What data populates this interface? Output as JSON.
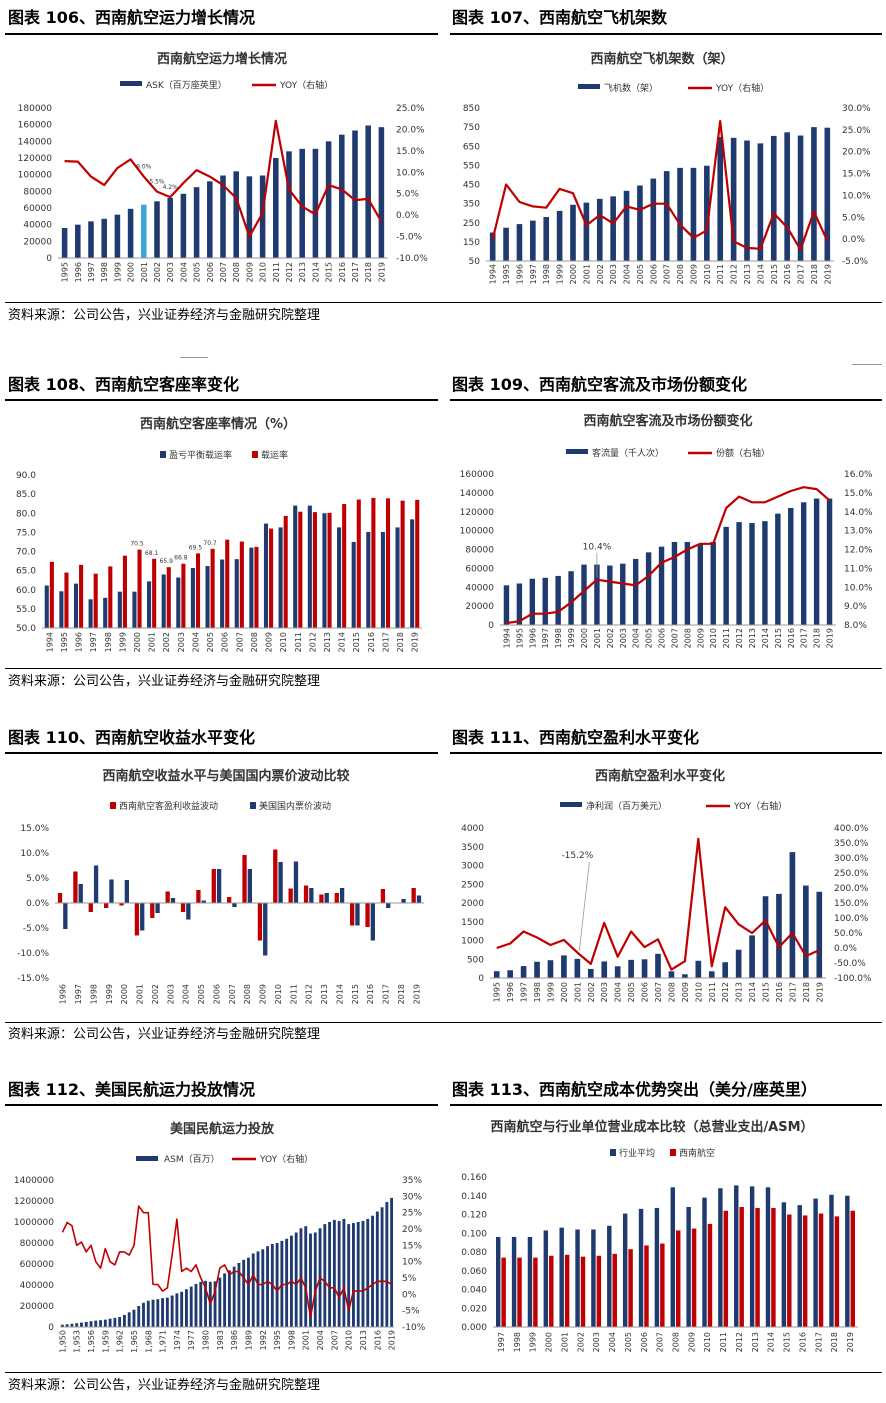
{
  "panels": [
    {
      "id": "c106",
      "heading": "图表 106、西南航空运力增长情况"
    },
    {
      "id": "c107",
      "heading": "图表 107、西南航空飞机架数"
    },
    {
      "id": "c108",
      "heading": "图表 108、西南航空客座率变化"
    },
    {
      "id": "c109",
      "heading": "图表 109、西南航空客流及市场份额变化"
    },
    {
      "id": "c110",
      "heading": "图表 110、西南航空收益水平变化"
    },
    {
      "id": "c111",
      "heading": "图表 111、西南航空盈利水平变化"
    },
    {
      "id": "c112",
      "heading": "图表 112、美国民航运力投放情况"
    },
    {
      "id": "c113",
      "heading": "图表 113、西南航空成本优势突出（美分/座英里）"
    }
  ],
  "source_text": "资料来源：公司公告，兴业证券经济与金融研究院整理",
  "colors": {
    "navy": "#1f3a6f",
    "red": "#c00000",
    "highlight": "#3aa6d8"
  },
  "chart_data": [
    {
      "id": "c106",
      "type": "bar+line",
      "title": "西南航空运力增长情况",
      "categories": [
        "1995",
        "1996",
        "1997",
        "1998",
        "1999",
        "2000",
        "2001",
        "2002",
        "2003",
        "2004",
        "2005",
        "2006",
        "2007",
        "2008",
        "2009",
        "2010",
        "2011",
        "2012",
        "2013",
        "2014",
        "2015",
        "2016",
        "2017",
        "2018",
        "2019"
      ],
      "series": [
        {
          "name": "ASK（百万座英里）",
          "kind": "bar",
          "axis": "left",
          "values": [
            36000,
            40000,
            44000,
            47000,
            52000,
            59000,
            64000,
            68000,
            72000,
            77000,
            85000,
            92000,
            99000,
            104000,
            98000,
            99000,
            120000,
            128000,
            131000,
            131000,
            140000,
            148000,
            153000,
            159000,
            157000
          ],
          "highlight_index": 6
        },
        {
          "name": "YOY（右轴）",
          "kind": "line",
          "axis": "right",
          "values": [
            12.6,
            12.5,
            9.0,
            7.0,
            11.0,
            13.0,
            9.0,
            5.5,
            4.2,
            7.5,
            10.5,
            9.0,
            7.0,
            4.0,
            -5.0,
            0.5,
            22.0,
            6.0,
            2.0,
            0.2,
            7.0,
            6.0,
            3.5,
            3.8,
            -1.5
          ]
        }
      ],
      "annotations": [
        {
          "index": 6,
          "text": "9.0%"
        },
        {
          "index": 7,
          "text": "5.5%"
        },
        {
          "index": 8,
          "text": "4.2%"
        }
      ],
      "ylim": [
        0,
        180000
      ],
      "yticks": [
        "0",
        "20000",
        "40000",
        "60000",
        "80000",
        "100000",
        "120000",
        "140000",
        "160000",
        "180000"
      ],
      "y2lim": [
        -10,
        25
      ],
      "y2ticks": [
        "-10.0%",
        "-5.0%",
        "0.0%",
        "5.0%",
        "10.0%",
        "15.0%",
        "20.0%",
        "25.0%"
      ],
      "legend_position": "top"
    },
    {
      "id": "c107",
      "type": "bar+line",
      "title": "西南航空飞机架数（架）",
      "categories": [
        "1994",
        "1995",
        "1996",
        "1997",
        "1998",
        "1999",
        "2000",
        "2001",
        "2002",
        "2003",
        "2004",
        "2005",
        "2006",
        "2007",
        "2008",
        "2009",
        "2010",
        "2011",
        "2012",
        "2013",
        "2014",
        "2015",
        "2016",
        "2017",
        "2018",
        "2019"
      ],
      "series": [
        {
          "name": "飞机数（架）",
          "kind": "bar",
          "axis": "left",
          "values": [
            199,
            224,
            243,
            261,
            280,
            312,
            344,
            355,
            375,
            388,
            417,
            445,
            481,
            520,
            537,
            537,
            548,
            698,
            694,
            680,
            665,
            704,
            723,
            706,
            750,
            747
          ]
        },
        {
          "name": "YOY（右轴）",
          "kind": "line",
          "axis": "right",
          "values": [
            0,
            12.5,
            8.5,
            7.5,
            7.2,
            11.5,
            10.5,
            3.2,
            5.5,
            3.6,
            7.5,
            6.7,
            8.1,
            8.1,
            3.3,
            0.3,
            2.0,
            27.0,
            -0.5,
            -2.0,
            -2.2,
            5.9,
            2.7,
            -2.4,
            6.3,
            -0.4
          ]
        }
      ],
      "ylim": [
        50,
        850
      ],
      "yticks": [
        "50",
        "150",
        "250",
        "350",
        "450",
        "550",
        "650",
        "750",
        "850"
      ],
      "y2lim": [
        -5,
        30
      ],
      "y2ticks": [
        "-5.0%",
        "0.0%",
        "5.0%",
        "10.0%",
        "15.0%",
        "20.0%",
        "25.0%",
        "30.0%"
      ],
      "legend_position": "top"
    },
    {
      "id": "c108",
      "type": "bar",
      "title": "西南航空客座率情况（%）",
      "categories": [
        "1994",
        "1995",
        "1996",
        "1997",
        "1998",
        "1999",
        "2000",
        "2001",
        "2002",
        "2003",
        "2004",
        "2005",
        "2006",
        "2007",
        "2008",
        "2009",
        "2010",
        "2011",
        "2012",
        "2013",
        "2014",
        "2015",
        "2016",
        "2017",
        "2018",
        "2019"
      ],
      "series": [
        {
          "name": "盈亏平衡载运率",
          "values": [
            61.1,
            59.6,
            61.6,
            57.5,
            57.9,
            59.5,
            59.5,
            62.2,
            64.0,
            63.2,
            65.7,
            66.2,
            67.9,
            68.0,
            71.0,
            77.3,
            76.3,
            82.0,
            82.0,
            80.0,
            76.3,
            72.5,
            75.1,
            75.1,
            76.3,
            78.4
          ]
        },
        {
          "name": "载运率",
          "values": [
            67.3,
            64.5,
            66.5,
            64.2,
            66.1,
            68.9,
            70.5,
            68.1,
            65.9,
            66.8,
            69.5,
            70.7,
            73.1,
            72.6,
            71.2,
            76.0,
            79.3,
            80.4,
            80.3,
            80.1,
            82.4,
            83.6,
            84.0,
            83.9,
            83.3,
            83.5
          ]
        }
      ],
      "annotations": [
        {
          "index": 6,
          "text": "70.5"
        },
        {
          "index": 7,
          "text": "68.1"
        },
        {
          "index": 8,
          "text": "65.9"
        },
        {
          "index": 9,
          "text": "66.8"
        },
        {
          "index": 10,
          "text": "69.5"
        },
        {
          "index": 11,
          "text": "70.7"
        }
      ],
      "ylim": [
        50,
        90
      ],
      "yticks": [
        "50.0",
        "55.0",
        "60.0",
        "65.0",
        "70.0",
        "75.0",
        "80.0",
        "85.0",
        "90.0"
      ],
      "legend_position": "top"
    },
    {
      "id": "c109",
      "type": "bar+line",
      "title": "西南航空客流及市场份额变化",
      "categories": [
        "1994",
        "1995",
        "1996",
        "1997",
        "1998",
        "1999",
        "2000",
        "2001",
        "2002",
        "2003",
        "2004",
        "2005",
        "2006",
        "2007",
        "2008",
        "2009",
        "2010",
        "2011",
        "2012",
        "2013",
        "2014",
        "2015",
        "2016",
        "2017",
        "2018",
        "2019"
      ],
      "series": [
        {
          "name": "客流量（千人次）",
          "kind": "bar",
          "axis": "left",
          "values": [
            42000,
            44000,
            49000,
            50000,
            52000,
            57000,
            64000,
            64000,
            63000,
            65000,
            70000,
            77000,
            83000,
            88000,
            88000,
            86000,
            88000,
            104000,
            109000,
            108000,
            110000,
            118000,
            124000,
            130000,
            134000,
            134000
          ]
        },
        {
          "name": "份额（右轴）",
          "kind": "line",
          "axis": "right",
          "values": [
            8.1,
            8.2,
            8.6,
            8.6,
            8.7,
            9.2,
            9.8,
            10.4,
            10.3,
            10.2,
            10.1,
            10.6,
            11.3,
            11.6,
            12.0,
            12.3,
            12.3,
            14.2,
            14.8,
            14.5,
            14.5,
            14.8,
            15.1,
            15.3,
            15.2,
            14.6
          ]
        }
      ],
      "annotations": [
        {
          "index": 7,
          "text": "10.4%"
        }
      ],
      "ylim": [
        0,
        160000
      ],
      "yticks": [
        "0",
        "20000",
        "40000",
        "60000",
        "80000",
        "100000",
        "120000",
        "140000",
        "160000"
      ],
      "y2lim": [
        8,
        16
      ],
      "y2ticks": [
        "8.0%",
        "9.0%",
        "10.0%",
        "11.0%",
        "12.0%",
        "13.0%",
        "14.0%",
        "15.0%",
        "16.0%"
      ],
      "legend_position": "top"
    },
    {
      "id": "c110",
      "type": "bar",
      "title": "西南航空收益水平与美国国内票价波动比较",
      "categories": [
        "1996",
        "1997",
        "1998",
        "1999",
        "2000",
        "2001",
        "2002",
        "2003",
        "2004",
        "2005",
        "2006",
        "2007",
        "2008",
        "2009",
        "2010",
        "2011",
        "2012",
        "2013",
        "2014",
        "2015",
        "2016",
        "2017",
        "2018",
        "2019"
      ],
      "series": [
        {
          "name": "西南航空客盈利收益波动",
          "values": [
            2.0,
            6.3,
            -1.8,
            -1.0,
            -0.5,
            -6.5,
            -3.0,
            2.3,
            -1.8,
            2.6,
            6.8,
            1.2,
            9.6,
            -7.5,
            10.7,
            2.9,
            3.5,
            1.7,
            2.0,
            -4.5,
            -4.8,
            2.8,
            0.0,
            3.0
          ]
        },
        {
          "name": "美国国内票价波动",
          "values": [
            -5.2,
            3.8,
            7.5,
            4.7,
            4.6,
            -5.5,
            -2.0,
            1.0,
            -3.3,
            0.5,
            6.8,
            -0.8,
            6.8,
            -10.5,
            8.2,
            8.3,
            3.0,
            2.0,
            3.0,
            -4.5,
            -7.5,
            -1.0,
            0.8,
            1.5
          ]
        }
      ],
      "ylim": [
        -15,
        15
      ],
      "yticks": [
        "-15.0%",
        "-10.0%",
        "-5.0%",
        "0.0%",
        "5.0%",
        "10.0%",
        "15.0%"
      ],
      "legend_position": "top"
    },
    {
      "id": "c111",
      "type": "bar+line",
      "title": "西南航空盈利水平变化",
      "categories": [
        "1995",
        "1996",
        "1997",
        "1998",
        "1999",
        "2000",
        "2001",
        "2002",
        "2003",
        "2004",
        "2005",
        "2006",
        "2007",
        "2008",
        "2009",
        "2010",
        "2011",
        "2012",
        "2013",
        "2014",
        "2015",
        "2016",
        "2017",
        "2018",
        "2019"
      ],
      "series": [
        {
          "name": "净利润（百万美元）",
          "kind": "bar",
          "axis": "right_is_line",
          "values": [
            182,
            207,
            318,
            433,
            474,
            603,
            511,
            241,
            442,
            313,
            484,
            499,
            645,
            178,
            99,
            459,
            178,
            421,
            754,
            1136,
            2181,
            2244,
            3357,
            2465,
            2300
          ]
        },
        {
          "name": "YOY（右轴）",
          "kind": "line",
          "axis": "right",
          "values": [
            0,
            15,
            55,
            35,
            10,
            27,
            -15.2,
            -53,
            84,
            -29,
            55,
            3,
            29,
            -72,
            -44,
            364,
            -61,
            136,
            79,
            50,
            92,
            3,
            50,
            -27,
            -7
          ]
        }
      ],
      "annotations": [
        {
          "index": 6,
          "text": "-15.2%"
        }
      ],
      "ylim": [
        0,
        4000
      ],
      "yticks": [
        "0",
        "500",
        "1000",
        "1500",
        "2000",
        "2500",
        "3000",
        "3500",
        "4000"
      ],
      "y2lim": [
        -100,
        400
      ],
      "y2ticks": [
        "-100.0%",
        "-50.0%",
        "0.0%",
        "50.0%",
        "100.0%",
        "150.0%",
        "200.0%",
        "250.0%",
        "300.0%",
        "350.0%",
        "400.0%"
      ],
      "legend_position": "top"
    },
    {
      "id": "c112",
      "type": "bar+line",
      "title": "美国民航运力投放",
      "tick_labels": [
        "1,950",
        "1,953",
        "1,956",
        "1,959",
        "1,962",
        "1,965",
        "1,968",
        "1,971",
        "1974",
        "1977",
        "1980",
        "1983",
        "1986",
        "1989",
        "1992",
        "1995",
        "1998",
        "2001",
        "2004",
        "2007",
        "2010",
        "2013",
        "2016",
        "2019"
      ],
      "years_start": 1950,
      "years_end": 2019,
      "series": [
        {
          "name": "ASM（百万）",
          "kind": "bar",
          "axis": "left",
          "values": [
            22000,
            26000,
            31000,
            36000,
            42000,
            48000,
            55000,
            61000,
            65000,
            70000,
            79000,
            87000,
            95000,
            115000,
            140000,
            165000,
            200000,
            230000,
            250000,
            260000,
            265000,
            275000,
            280000,
            300000,
            320000,
            335000,
            360000,
            385000,
            410000,
            430000,
            440000,
            430000,
            435000,
            470000,
            510000,
            540000,
            575000,
            610000,
            640000,
            660000,
            700000,
            720000,
            740000,
            770000,
            790000,
            800000,
            820000,
            840000,
            870000,
            900000,
            940000,
            960000,
            890000,
            900000,
            940000,
            980000,
            1000000,
            1020000,
            1010000,
            1030000,
            980000,
            990000,
            1000000,
            1010000,
            1030000,
            1060000,
            1100000,
            1140000,
            1190000,
            1230000
          ]
        },
        {
          "name": "YOY（右轴）",
          "kind": "line",
          "axis": "right",
          "values": [
            19,
            22,
            21,
            15,
            16,
            13,
            15,
            10,
            8,
            14,
            10,
            9,
            13,
            13,
            12,
            15,
            27,
            25,
            25,
            3,
            3,
            1,
            2,
            12,
            23,
            7,
            8,
            7,
            9,
            5,
            2,
            -3,
            1,
            8,
            9,
            6,
            7,
            7,
            5,
            3,
            6,
            3,
            3,
            4,
            3,
            1,
            3,
            3,
            4,
            3,
            5,
            2,
            -7,
            1,
            5,
            4,
            2,
            2,
            -1,
            2,
            -5,
            1,
            1,
            1,
            2,
            3,
            4,
            4,
            4,
            3
          ]
        }
      ],
      "ylim": [
        0,
        1400000
      ],
      "yticks": [
        "0",
        "200000",
        "400000",
        "600000",
        "800000",
        "1000000",
        "1200000",
        "1400000"
      ],
      "y2lim": [
        -10,
        35
      ],
      "y2ticks": [
        "-10%",
        "-5%",
        "0%",
        "5%",
        "10%",
        "15%",
        "20%",
        "25%",
        "30%",
        "35%"
      ],
      "legend_position": "top"
    },
    {
      "id": "c113",
      "type": "bar",
      "title": "西南航空与行业单位营业成本比较（总营业支出/ASM）",
      "categories": [
        "1997",
        "1998",
        "1999",
        "2000",
        "2001",
        "2002",
        "2003",
        "2004",
        "2005",
        "2006",
        "2007",
        "2008",
        "2009",
        "2010",
        "2011",
        "2012",
        "2013",
        "2014",
        "2015",
        "2016",
        "2017",
        "2018",
        "2019"
      ],
      "series": [
        {
          "name": "行业平均",
          "values": [
            0.096,
            0.096,
            0.096,
            0.103,
            0.106,
            0.104,
            0.104,
            0.108,
            0.121,
            0.126,
            0.127,
            0.149,
            0.128,
            0.138,
            0.148,
            0.151,
            0.15,
            0.149,
            0.133,
            0.13,
            0.137,
            0.141,
            0.14
          ]
        },
        {
          "name": "西南航空",
          "values": [
            0.074,
            0.074,
            0.074,
            0.076,
            0.077,
            0.075,
            0.076,
            0.078,
            0.083,
            0.087,
            0.089,
            0.103,
            0.105,
            0.11,
            0.124,
            0.128,
            0.127,
            0.127,
            0.12,
            0.119,
            0.121,
            0.118,
            0.124
          ]
        }
      ],
      "ylim": [
        0,
        0.16
      ],
      "yticks": [
        "0.000",
        "0.020",
        "0.040",
        "0.060",
        "0.080",
        "0.100",
        "0.120",
        "0.140",
        "0.160"
      ],
      "legend_position": "top"
    }
  ]
}
